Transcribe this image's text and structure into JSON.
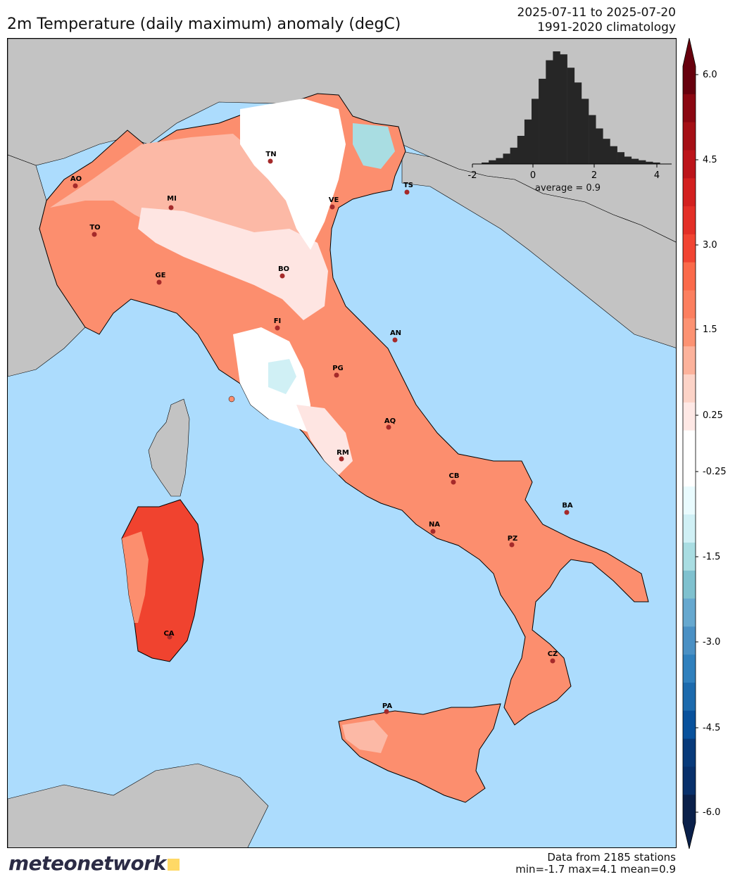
{
  "title": "2m Temperature (daily maximum) anomaly (degC)",
  "period": {
    "range": "2025-07-11 to 2025-07-20",
    "climatology": "1991-2020 climatology"
  },
  "histogram": {
    "x_ticks": [
      "-2",
      "0",
      "2",
      "4"
    ],
    "average_label": "average = 0.9",
    "bin_edges": [
      -1.7,
      4.1
    ],
    "counts": [
      2,
      5,
      8,
      14,
      22,
      38,
      60,
      88,
      115,
      140,
      152,
      148,
      130,
      110,
      88,
      66,
      48,
      34,
      24,
      16,
      10,
      7,
      5,
      3,
      2
    ]
  },
  "colorbar": {
    "tick_labels": [
      "6.0",
      "4.5",
      "3.0",
      "1.5",
      "0.25",
      "-0.25",
      "-1.5",
      "-3.0",
      "-4.5",
      "-6.0"
    ],
    "colors_top_to_bottom": [
      "#67000d",
      "#8b0711",
      "#a50f15",
      "#bc141a",
      "#d3201f",
      "#e32f27",
      "#f14432",
      "#fb6a4a",
      "#fc7f5f",
      "#fc9272",
      "#fcb29b",
      "#fcd3c7",
      "#fee8e5",
      "#ffffff",
      "#ffffff",
      "#e9fbfe",
      "#d0f0f5",
      "#a9dde2",
      "#7fc1cf",
      "#66a8cf",
      "#4a90c4",
      "#3080bd",
      "#1c6aad",
      "#08519c",
      "#083a7a",
      "#08306b",
      "#0a204a"
    ]
  },
  "stations": [
    {
      "code": "AO"
    },
    {
      "code": "MI"
    },
    {
      "code": "TO"
    },
    {
      "code": "TN"
    },
    {
      "code": "TS"
    },
    {
      "code": "VE"
    },
    {
      "code": "GE"
    },
    {
      "code": "BO"
    },
    {
      "code": "FI"
    },
    {
      "code": "AN"
    },
    {
      "code": "PG"
    },
    {
      "code": "AQ"
    },
    {
      "code": "RM"
    },
    {
      "code": "CB"
    },
    {
      "code": "BA"
    },
    {
      "code": "NA"
    },
    {
      "code": "PZ"
    },
    {
      "code": "CA"
    },
    {
      "code": "CZ"
    },
    {
      "code": "PA"
    }
  ],
  "footer": {
    "stations": "Data from 2185 stations",
    "stats": "min=-1.7 max=4.1 mean=0.9"
  },
  "logo": "meteonetwork",
  "colors": {
    "sea": "#acdcfd",
    "land_outside": "#c3c3c3",
    "anomaly_warm": "#fc8e6e",
    "anomaly_hot": "#f0432f",
    "anomaly_mild": "#fcb9a6",
    "anomaly_slight": "#fee5e2",
    "anomaly_neutral": "#ffffff",
    "anomaly_cool": "#a9dde2"
  }
}
